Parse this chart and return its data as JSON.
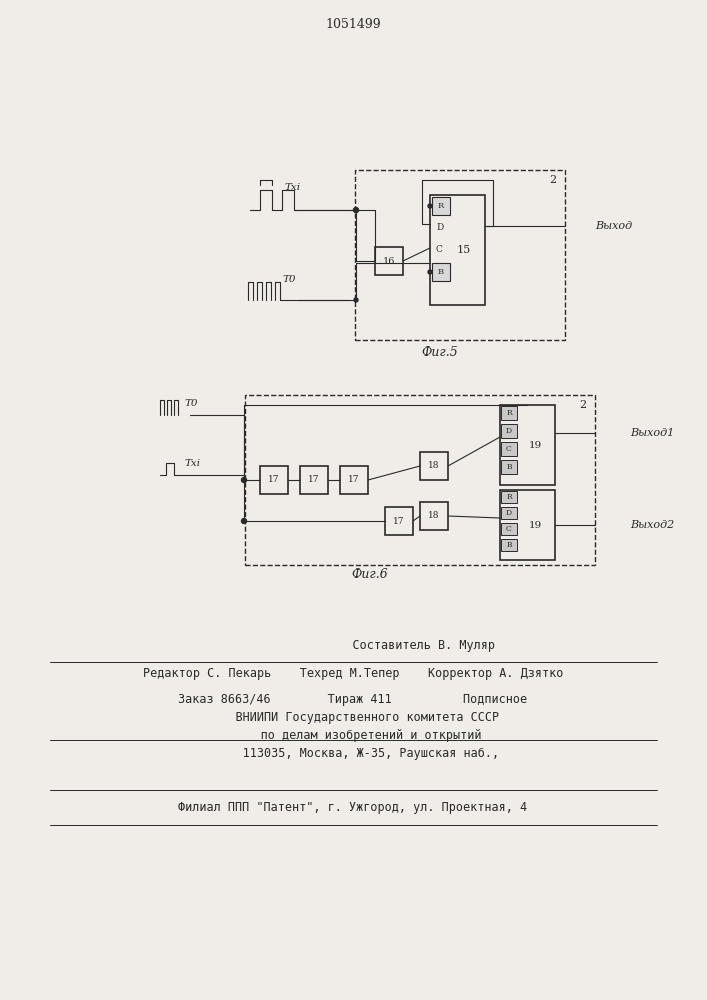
{
  "title": "1051499",
  "background_color": "#f0ede8",
  "fig5_label": "Фиг.5",
  "fig6_label": "Фиг.6",
  "vykhod_label": "Выход",
  "vykhod1_label": "Выход1",
  "vykhod2_label": "Выход2",
  "block2_label": "2",
  "block15_label": "15",
  "block16_label": "16",
  "block17a_label": "17",
  "block17b_label": "17",
  "block17c_label": "17",
  "block18a_label": "18",
  "block18b_label": "18",
  "block19a_label": "19",
  "block19b_label": "19",
  "txl_label": "Txi",
  "t0_label": "T0",
  "rdcs_labels": [
    "R",
    "D",
    "C",
    "B"
  ],
  "footer_line1": "                    Составитель В. Муляр",
  "footer_line2": "Редактор С. Пекарь    Техред М.Тепер    Корректор А. Дзятко",
  "footer_line3": "Заказ 8663/46        Тираж 411          Подписное",
  "footer_line4": "    ВНИИПИ Государственного комитета СССР",
  "footer_line5": "     по делам изобретений и открытий",
  "footer_line6": "     113035, Москва, Ж-35, Раушская наб.,",
  "footer_line7": "Филиал ППП \"Патент\", г. Ужгород, ул. Проектная, 4"
}
